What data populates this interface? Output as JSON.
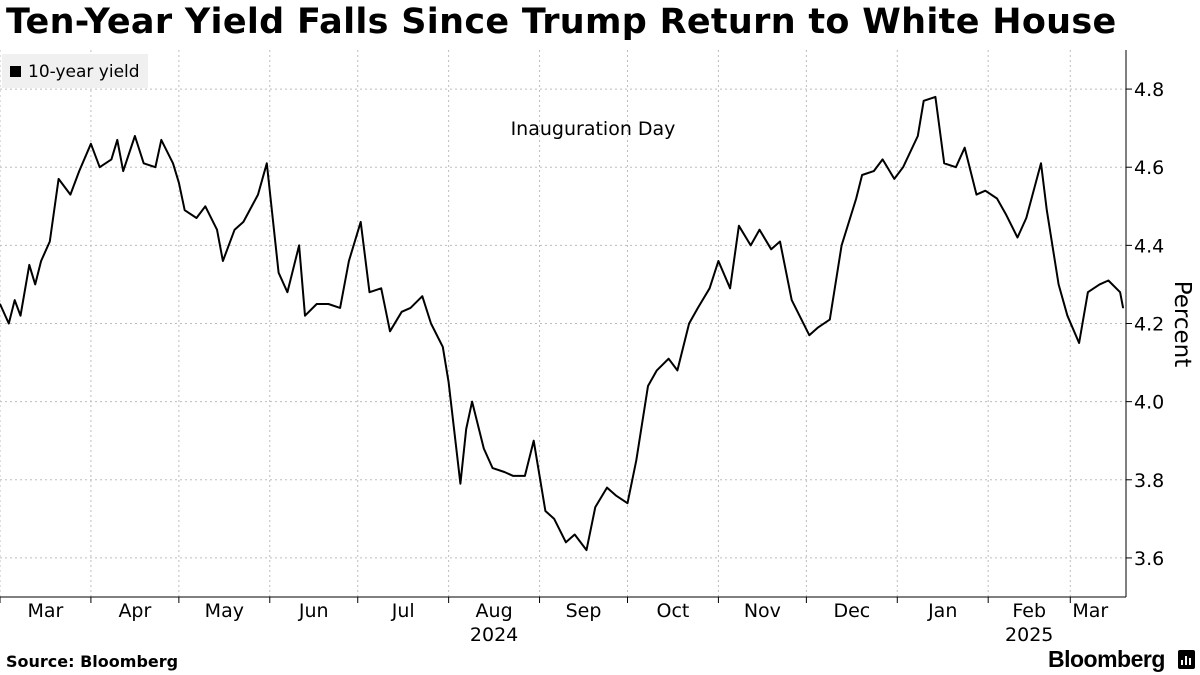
{
  "title": "Ten-Year Yield Falls Since Trump Return to White House",
  "source": "Source: Bloomberg",
  "brand": "Bloomberg",
  "brand_icon": "bloomberg-terminal-icon",
  "colors": {
    "line": "#000000",
    "grid": "#bdbdbd",
    "legend_bg": "#f0f0f0"
  },
  "chart_data": {
    "type": "line",
    "legend": [
      "10-year yield"
    ],
    "legend_position": "top-left",
    "annotation": "Inauguration Day",
    "ylabel": "Percent",
    "y_axis_side": "right",
    "ylim": [
      3.5,
      4.9
    ],
    "yticks": [
      "3.6",
      "3.8",
      "4.0",
      "4.2",
      "4.4",
      "4.6",
      "4.8"
    ],
    "xlim": [
      "2024-03-01",
      "2025-03-20"
    ],
    "x_month_labels": [
      "Mar",
      "Apr",
      "May",
      "Jun",
      "Jul",
      "Aug",
      "Sep",
      "Oct",
      "Nov",
      "Dec",
      "Jan",
      "Feb",
      "Mar"
    ],
    "x_month_dates": [
      "2024-03-01",
      "2024-04-01",
      "2024-05-01",
      "2024-06-01",
      "2024-07-01",
      "2024-08-01",
      "2024-09-01",
      "2024-10-01",
      "2024-11-01",
      "2024-12-01",
      "2025-01-01",
      "2025-02-01",
      "2025-03-01"
    ],
    "x_year_labels": [
      {
        "label": "2024",
        "date": "2024-08-01"
      },
      {
        "label": "2025",
        "date": "2025-02-01"
      }
    ],
    "grid": true,
    "series": [
      {
        "name": "10-year yield",
        "x": [
          "2024-03-01",
          "2024-03-04",
          "2024-03-06",
          "2024-03-08",
          "2024-03-11",
          "2024-03-13",
          "2024-03-15",
          "2024-03-18",
          "2024-03-21",
          "2024-03-25",
          "2024-03-28",
          "2024-04-01",
          "2024-04-04",
          "2024-04-08",
          "2024-04-10",
          "2024-04-12",
          "2024-04-16",
          "2024-04-19",
          "2024-04-23",
          "2024-04-25",
          "2024-04-29",
          "2024-05-01",
          "2024-05-03",
          "2024-05-07",
          "2024-05-10",
          "2024-05-14",
          "2024-05-16",
          "2024-05-20",
          "2024-05-23",
          "2024-05-28",
          "2024-05-31",
          "2024-06-04",
          "2024-06-07",
          "2024-06-11",
          "2024-06-13",
          "2024-06-17",
          "2024-06-21",
          "2024-06-25",
          "2024-06-28",
          "2024-07-02",
          "2024-07-05",
          "2024-07-09",
          "2024-07-12",
          "2024-07-16",
          "2024-07-19",
          "2024-07-23",
          "2024-07-26",
          "2024-07-30",
          "2024-08-01",
          "2024-08-05",
          "2024-08-07",
          "2024-08-09",
          "2024-08-13",
          "2024-08-16",
          "2024-08-20",
          "2024-08-23",
          "2024-08-27",
          "2024-08-30",
          "2024-09-03",
          "2024-09-06",
          "2024-09-10",
          "2024-09-13",
          "2024-09-17",
          "2024-09-20",
          "2024-09-24",
          "2024-09-27",
          "2024-10-01",
          "2024-10-04",
          "2024-10-08",
          "2024-10-11",
          "2024-10-15",
          "2024-10-18",
          "2024-10-22",
          "2024-10-25",
          "2024-10-29",
          "2024-11-01",
          "2024-11-05",
          "2024-11-08",
          "2024-11-12",
          "2024-11-15",
          "2024-11-19",
          "2024-11-22",
          "2024-11-26",
          "2024-12-02",
          "2024-12-05",
          "2024-12-09",
          "2024-12-13",
          "2024-12-18",
          "2024-12-20",
          "2024-12-24",
          "2024-12-27",
          "2024-12-31",
          "2025-01-03",
          "2025-01-08",
          "2025-01-10",
          "2025-01-14",
          "2025-01-17",
          "2025-01-21",
          "2025-01-24",
          "2025-01-28",
          "2025-01-31",
          "2025-02-04",
          "2025-02-07",
          "2025-02-11",
          "2025-02-14",
          "2025-02-19",
          "2025-02-21",
          "2025-02-25",
          "2025-02-28",
          "2025-03-04",
          "2025-03-07",
          "2025-03-11",
          "2025-03-14",
          "2025-03-18",
          "2025-03-19"
        ],
        "values": [
          4.25,
          4.2,
          4.26,
          4.22,
          4.35,
          4.3,
          4.36,
          4.41,
          4.57,
          4.53,
          4.59,
          4.66,
          4.6,
          4.62,
          4.67,
          4.59,
          4.68,
          4.61,
          4.6,
          4.67,
          4.61,
          4.56,
          4.49,
          4.47,
          4.5,
          4.44,
          4.36,
          4.44,
          4.46,
          4.53,
          4.61,
          4.33,
          4.28,
          4.4,
          4.22,
          4.25,
          4.25,
          4.24,
          4.36,
          4.46,
          4.28,
          4.29,
          4.18,
          4.23,
          4.24,
          4.27,
          4.2,
          4.14,
          4.05,
          3.79,
          3.93,
          4.0,
          3.88,
          3.83,
          3.82,
          3.81,
          3.81,
          3.9,
          3.72,
          3.7,
          3.64,
          3.66,
          3.62,
          3.73,
          3.78,
          3.76,
          3.74,
          3.85,
          4.04,
          4.08,
          4.11,
          4.08,
          4.2,
          4.24,
          4.29,
          4.36,
          4.29,
          4.45,
          4.4,
          4.44,
          4.39,
          4.41,
          4.26,
          4.17,
          4.19,
          4.21,
          4.4,
          4.52,
          4.58,
          4.59,
          4.62,
          4.57,
          4.6,
          4.68,
          4.77,
          4.78,
          4.61,
          4.6,
          4.65,
          4.53,
          4.54,
          4.52,
          4.48,
          4.42,
          4.47,
          4.61,
          4.49,
          4.3,
          4.22,
          4.15,
          4.28,
          4.3,
          4.31,
          4.28,
          4.24
        ]
      }
    ]
  }
}
